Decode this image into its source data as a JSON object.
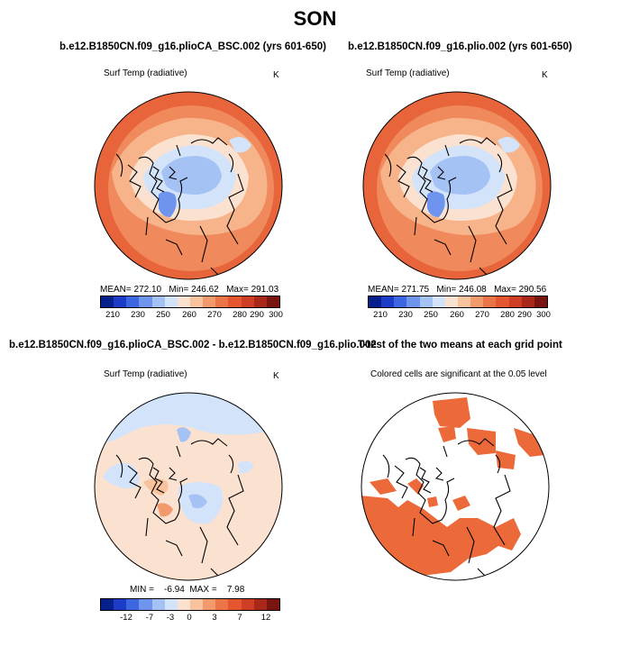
{
  "season": "SON",
  "panels": [
    {
      "title": "b.e12.B1850CN.f09_g16.plioCA_BSC.002 (yrs 601-650)",
      "variable": "Surf Temp (radiative)",
      "units": "K",
      "stats": "MEAN= 272.10   Min= 246.62   Max= 291.03",
      "colorbar_labels": [
        "210",
        "230",
        "250",
        "260",
        "270",
        "280",
        "290",
        "300"
      ]
    },
    {
      "title": "b.e12.B1850CN.f09_g16.plio.002 (yrs 601-650)",
      "variable": "Surf Temp (radiative)",
      "units": "K",
      "stats": "MEAN= 271.75   Min= 246.08   Max= 290.56",
      "colorbar_labels": [
        "210",
        "230",
        "250",
        "260",
        "270",
        "280",
        "290",
        "300"
      ]
    },
    {
      "title": "b.e12.B1850CN.f09_g16.plioCA_BSC.002 - b.e12.B1850CN.f09_g16.plio.002",
      "variable": "Surf Temp (radiative)",
      "units": "K",
      "stats": "MIN =    -6.94  MAX =    7.98",
      "colorbar_labels": [
        "-12",
        "-7",
        "-3",
        "0",
        "3",
        "7",
        "12"
      ]
    },
    {
      "title": "T-test of the two means at each grid point",
      "subtitle": "Colored cells are significant at the 0.05 level"
    }
  ],
  "colors": {
    "abs_scale": [
      "#08208c",
      "#1c3cc8",
      "#3d67e0",
      "#6f94ee",
      "#a5c2f5",
      "#d2e3fa",
      "#fbe2d0",
      "#f9c29e",
      "#f39a6d",
      "#eb7449",
      "#e3562f",
      "#cf3d24",
      "#a8281a",
      "#7a1410"
    ],
    "diff_scale": [
      "#08208c",
      "#1c3cc8",
      "#3d67e0",
      "#6f94ee",
      "#a5c2f5",
      "#d2e3fa",
      "#fbe2d0",
      "#f9c29e",
      "#f39a6d",
      "#eb7449",
      "#e3562f",
      "#cf3d24",
      "#a8281a",
      "#7a1410"
    ],
    "significant_cell": "#ec6a3a",
    "land_outline": "#000000"
  }
}
